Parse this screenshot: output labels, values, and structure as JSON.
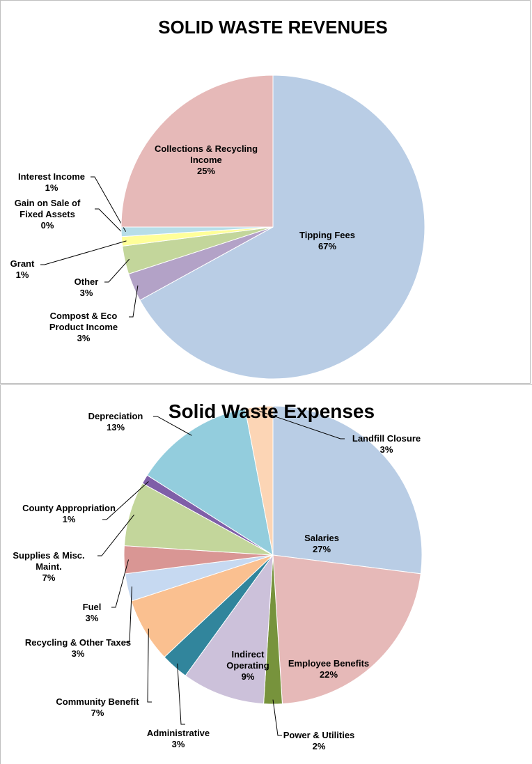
{
  "chart_data": [
    {
      "type": "pie",
      "title": "SOLID WASTE REVENUES",
      "categories": [
        "Tipping Fees",
        "Compost & Eco Product Income",
        "Other",
        "Grant",
        "Gain on Sale of Fixed Assets",
        "Interest Income",
        "Collections & Recycling Income"
      ],
      "values": [
        67,
        3,
        3,
        1,
        0,
        1,
        25
      ],
      "value_labels": [
        "67%",
        "3%",
        "3%",
        "1%",
        "0%",
        "1%",
        "25%"
      ],
      "colors": [
        "#b9cde5",
        "#b3a2c7",
        "#c3d69b",
        "#ffff99",
        "#31859c",
        "#b7dee8",
        "#e6b9b8"
      ]
    },
    {
      "type": "pie",
      "title": "Solid Waste Expenses",
      "categories": [
        "Salaries",
        "Employee Benefits",
        "Power & Utilities",
        "Indirect Operating",
        "Administrative",
        "Community Benefit",
        "Recycling & Other Taxes",
        "Fuel",
        "Supplies & Misc. Maint.",
        "County Appropriation",
        "Depreciation",
        "Landfill Closure"
      ],
      "values": [
        27,
        22,
        2,
        9,
        3,
        7,
        3,
        3,
        7,
        1,
        13,
        3
      ],
      "value_labels": [
        "27%",
        "22%",
        "2%",
        "9%",
        "3%",
        "7%",
        "3%",
        "3%",
        "7%",
        "1%",
        "13%",
        "3%"
      ],
      "colors": [
        "#b9cde5",
        "#e6b9b8",
        "#77933c",
        "#ccc1da",
        "#31859c",
        "#fac090",
        "#c6d9f1",
        "#d99694",
        "#c3d69b",
        "#7f5fa8",
        "#93cddd",
        "#fcd5b5"
      ]
    }
  ]
}
